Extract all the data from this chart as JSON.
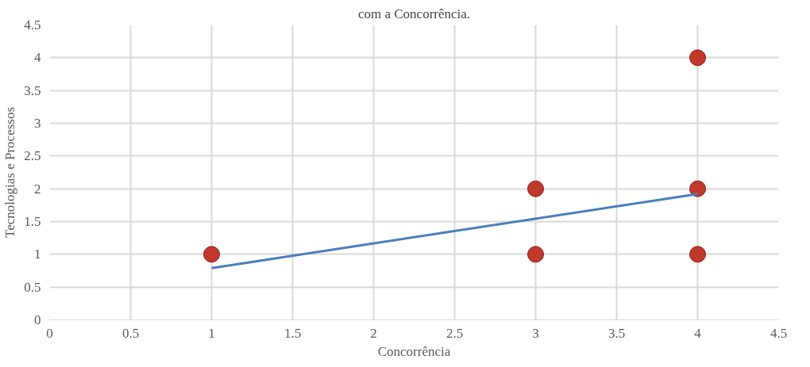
{
  "chart_data": {
    "type": "scatter",
    "title": "com a Concorrência.",
    "xlabel": "Concorrência",
    "ylabel": "Tecnologias e Processos",
    "x": [
      1,
      3,
      3,
      4,
      4,
      4
    ],
    "series": [
      {
        "color": "#c0392b",
        "values": [
          1,
          2,
          1,
          4,
          2,
          1
        ],
        "marker": "circle"
      },
      {
        "type": "line",
        "color": "#4a7ebb",
        "x": [
          1,
          4
        ],
        "values": [
          0.79,
          1.92
        ],
        "line_style": "solid"
      }
    ],
    "xlim": [
      0,
      4.5
    ],
    "ylim": [
      0,
      4.5
    ],
    "xticks": [
      0,
      0.5,
      1,
      1.5,
      2,
      2.5,
      3,
      3.5,
      4,
      4.5
    ],
    "yticks": [
      0,
      0.5,
      1,
      1.5,
      2,
      2.5,
      3,
      3.5,
      4,
      4.5
    ],
    "grid": true
  }
}
